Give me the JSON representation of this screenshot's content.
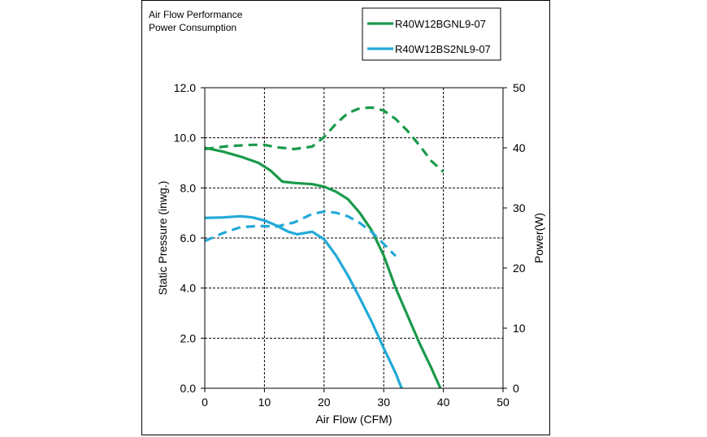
{
  "header": {
    "line1": "Air Flow Performance",
    "line2": "Power Consumption"
  },
  "chart_data": {
    "type": "line",
    "xlabel": "Air Flow (CFM)",
    "ylabel": "Static Pressure (inwg.)",
    "y2label": "Power(W)",
    "xlim": [
      0,
      50
    ],
    "ylim": [
      0,
      12
    ],
    "y2lim": [
      0,
      50
    ],
    "x_ticks": [
      "0",
      "10",
      "20",
      "30",
      "40",
      "50"
    ],
    "y_ticks": [
      "0.0",
      "2.0",
      "4.0",
      "6.0",
      "8.0",
      "10.0",
      "12.0"
    ],
    "y2_ticks": [
      "0",
      "10",
      "20",
      "30",
      "40",
      "50"
    ],
    "grid": true,
    "legend_position": "top-right",
    "legend": [
      {
        "label": "R40W12BGNL9-07",
        "color": "#1a9a4a"
      },
      {
        "label": "R40W12BS2NL9-07",
        "color": "#22aad8"
      }
    ],
    "series": [
      {
        "name": "R40W12BGNL9-07 static pressure",
        "color": "#1a9a4a",
        "style": "solid",
        "axis": "left",
        "points": [
          [
            0,
            9.6
          ],
          [
            3,
            9.45
          ],
          [
            6,
            9.25
          ],
          [
            9,
            9.0
          ],
          [
            11,
            8.7
          ],
          [
            13,
            8.25
          ],
          [
            15,
            8.2
          ],
          [
            18,
            8.15
          ],
          [
            20,
            8.05
          ],
          [
            22,
            7.85
          ],
          [
            24,
            7.55
          ],
          [
            26,
            7.0
          ],
          [
            28,
            6.3
          ],
          [
            30,
            5.3
          ],
          [
            32,
            4.0
          ],
          [
            34,
            2.9
          ],
          [
            36,
            1.8
          ],
          [
            38,
            0.8
          ],
          [
            39.5,
            0.0
          ]
        ]
      },
      {
        "name": "R40W12BGNL9-07 power",
        "color": "#1a9a4a",
        "style": "dashed",
        "axis": "right",
        "points": [
          [
            0,
            39.8
          ],
          [
            4,
            40.3
          ],
          [
            8,
            40.5
          ],
          [
            10,
            40.5
          ],
          [
            12,
            40.1
          ],
          [
            15,
            39.8
          ],
          [
            18,
            40.2
          ],
          [
            20,
            41.8
          ],
          [
            22,
            44.0
          ],
          [
            24,
            45.8
          ],
          [
            26,
            46.6
          ],
          [
            28,
            46.7
          ],
          [
            30,
            46.2
          ],
          [
            32,
            44.8
          ],
          [
            34,
            42.8
          ],
          [
            36,
            40.4
          ],
          [
            38,
            37.8
          ],
          [
            40,
            36.0
          ]
        ]
      },
      {
        "name": "R40W12BS2NL9-07 static pressure",
        "color": "#22aad8",
        "style": "solid",
        "axis": "left",
        "points": [
          [
            0,
            6.8
          ],
          [
            3,
            6.82
          ],
          [
            6,
            6.87
          ],
          [
            8,
            6.82
          ],
          [
            10,
            6.7
          ],
          [
            12,
            6.5
          ],
          [
            14,
            6.25
          ],
          [
            15.5,
            6.15
          ],
          [
            18,
            6.25
          ],
          [
            20,
            5.95
          ],
          [
            22,
            5.3
          ],
          [
            24,
            4.5
          ],
          [
            26,
            3.6
          ],
          [
            28,
            2.65
          ],
          [
            30,
            1.6
          ],
          [
            32,
            0.6
          ],
          [
            33,
            0.0
          ]
        ]
      },
      {
        "name": "R40W12BS2NL9-07 power",
        "color": "#22aad8",
        "style": "dashed",
        "axis": "right",
        "points": [
          [
            0,
            24.5
          ],
          [
            3,
            25.8
          ],
          [
            6,
            26.8
          ],
          [
            9,
            27.0
          ],
          [
            12,
            26.9
          ],
          [
            15,
            27.6
          ],
          [
            18,
            29.0
          ],
          [
            20,
            29.4
          ],
          [
            22,
            29.2
          ],
          [
            24,
            28.6
          ],
          [
            26,
            27.5
          ],
          [
            28,
            26.0
          ],
          [
            30,
            24.0
          ],
          [
            32,
            22.0
          ]
        ]
      }
    ]
  }
}
